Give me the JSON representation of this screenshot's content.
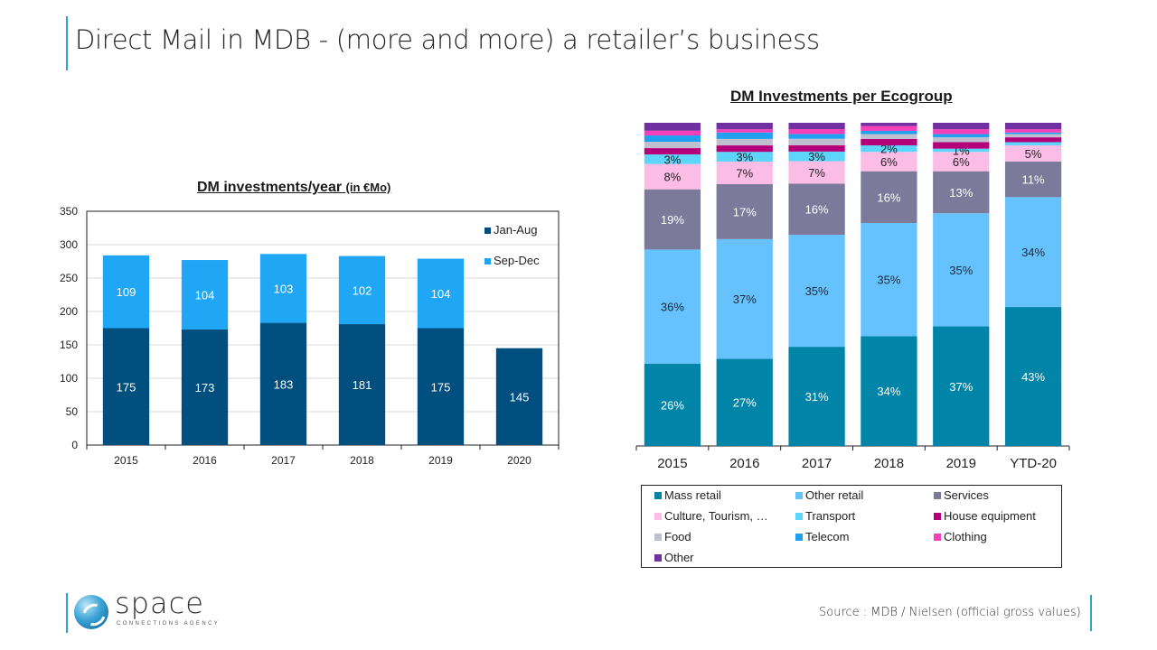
{
  "page": {
    "title": "Direct Mail in MDB  -  (more and more) a retailer’s business",
    "source": "Source : MDB / Nielsen (official gross values)",
    "logo": {
      "name": "space",
      "tagline": "CONNECTIONS AGENCY"
    },
    "accent_color": "#2aa8c4"
  },
  "chart_data": [
    {
      "type": "bar",
      "stacked": true,
      "title": "DM investments/year",
      "title_suffix": "(in €Mo)",
      "xlabel": "",
      "ylabel": "",
      "categories": [
        "2015",
        "2016",
        "2017",
        "2018",
        "2019",
        "2020"
      ],
      "ylim": [
        0,
        350
      ],
      "yticks": [
        0,
        50,
        100,
        150,
        200,
        250,
        300,
        350
      ],
      "grid": true,
      "legend_position": "top-right",
      "series": [
        {
          "name": "Jan-Aug",
          "color": "#004f7f",
          "values": [
            175,
            173,
            183,
            181,
            175,
            145
          ]
        },
        {
          "name": "Sep-Dec",
          "color": "#1fa6f5",
          "values": [
            109,
            104,
            103,
            102,
            104,
            null
          ]
        }
      ]
    },
    {
      "type": "bar",
      "stacked": true,
      "percent": true,
      "title": "DM Investments per Ecogroup",
      "categories": [
        "2015",
        "2016",
        "2017",
        "2018",
        "2019",
        "YTD-20"
      ],
      "ylim": [
        0,
        100
      ],
      "grid": false,
      "legend_position": "bottom",
      "series": [
        {
          "name": "Mass retail",
          "color": "#0084a8",
          "values": [
            26,
            27,
            31,
            34,
            37,
            43
          ],
          "labeled": true,
          "label_color": "#ffffff"
        },
        {
          "name": "Other retail",
          "color": "#66c2fc",
          "values": [
            36,
            37,
            35,
            35,
            35,
            34
          ],
          "labeled": true,
          "label_color": "#1a2a3a"
        },
        {
          "name": "Services",
          "color": "#7c7a9a",
          "values": [
            19,
            17,
            16,
            16,
            13,
            11
          ],
          "labeled": true,
          "label_color": "#ffffff"
        },
        {
          "name": "Culture, Tourism, …",
          "color": "#fbbde6",
          "values": [
            8,
            7,
            7,
            6,
            6,
            5
          ],
          "labeled": true,
          "label_color": "#222222"
        },
        {
          "name": "Transport",
          "color": "#5dd4fa",
          "values": [
            3,
            3,
            3,
            2,
            1,
            1
          ],
          "labeled": true,
          "label_color": "#222222",
          "label_hidden": [
            false,
            false,
            false,
            false,
            false,
            true
          ]
        },
        {
          "name": "House equipment",
          "color": "#b3007a",
          "values": [
            2,
            2,
            2,
            2,
            2,
            1.5
          ],
          "labeled": false
        },
        {
          "name": "Food",
          "color": "#c0bfd0",
          "values": [
            2,
            2,
            2,
            1.5,
            1.5,
            1
          ],
          "labeled": false
        },
        {
          "name": "Telecom",
          "color": "#20a0f0",
          "values": [
            2,
            2,
            1.5,
            1,
            1,
            0.5
          ],
          "labeled": false
        },
        {
          "name": "Clothing",
          "color": "#f441b8",
          "values": [
            1.5,
            1,
            1.5,
            1.5,
            1.5,
            1
          ],
          "labeled": false
        },
        {
          "name": "Other",
          "color": "#7030a0",
          "values": [
            2.5,
            2,
            2,
            1,
            2,
            2
          ],
          "labeled": false
        }
      ]
    }
  ]
}
